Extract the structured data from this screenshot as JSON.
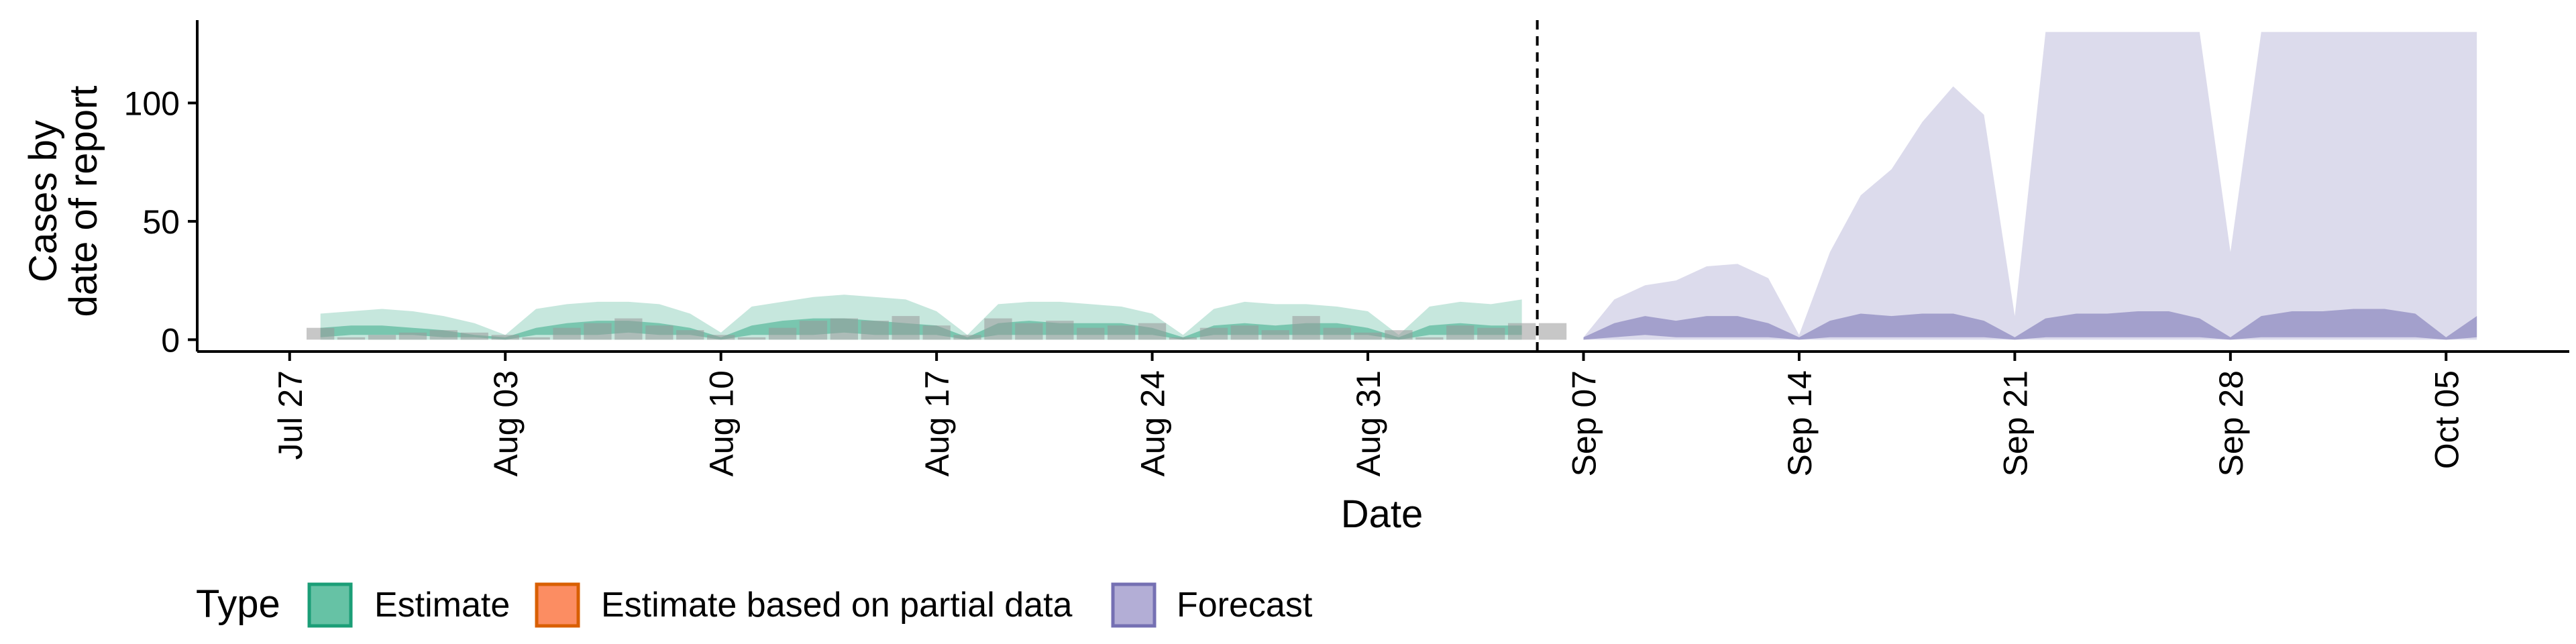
{
  "chart_data": {
    "type": "area",
    "xlabel": "Date",
    "ylabel_lines": [
      "Cases by",
      "date of report"
    ],
    "y_ticks": [
      0,
      50,
      100
    ],
    "ylim": [
      -5,
      135
    ],
    "x_tick_labels": [
      "Jul 27",
      "Aug 03",
      "Aug 10",
      "Aug 17",
      "Aug 24",
      "Aug 31",
      "Sep 07",
      "Sep 14",
      "Sep 21",
      "Sep 28",
      "Oct 05"
    ],
    "x_tick_days": [
      0,
      7,
      14,
      21,
      28,
      35,
      42,
      49,
      56,
      63,
      70
    ],
    "x_axis_start": "Jul 27",
    "xlim_days": [
      -3,
      74
    ],
    "forecast_start_day": 40.5,
    "legend": {
      "title": "Type",
      "position": "bottom-left",
      "items": [
        {
          "label": "Estimate",
          "fill": "#66c2a5",
          "stroke": "#1b9e77"
        },
        {
          "label": "Estimate based on partial data",
          "fill": "#fc8d62",
          "stroke": "#d95f02"
        },
        {
          "label": "Forecast",
          "fill": "#b3aed6",
          "stroke": "#7570b3"
        }
      ]
    },
    "colors": {
      "estimate": "#1b9e77",
      "forecast": "#7570b3",
      "observed": "#999999",
      "divider": "#000000"
    },
    "observed_cases": {
      "days": [
        1,
        2,
        3,
        4,
        5,
        6,
        7,
        8,
        9,
        10,
        11,
        12,
        13,
        14,
        15,
        16,
        17,
        18,
        19,
        20,
        21,
        22,
        23,
        24,
        25,
        26,
        27,
        28,
        29,
        30,
        31,
        32,
        33,
        34,
        35,
        36,
        37,
        38,
        39,
        40,
        41
      ],
      "values": [
        5,
        1,
        2,
        3,
        4,
        3,
        2,
        1,
        5,
        7,
        9,
        6,
        4,
        2,
        1,
        5,
        8,
        9,
        8,
        10,
        6,
        2,
        9,
        7,
        8,
        5,
        6,
        7,
        1,
        5,
        6,
        4,
        10,
        5,
        3,
        4,
        1,
        6,
        5,
        7,
        7
      ]
    },
    "estimate_series": {
      "days": [
        1,
        2,
        3,
        4,
        5,
        6,
        7,
        8,
        9,
        10,
        11,
        12,
        13,
        14,
        15,
        16,
        17,
        18,
        19,
        20,
        21,
        22,
        23,
        24,
        25,
        26,
        27,
        28,
        29,
        30,
        31,
        32,
        33,
        34,
        35,
        36,
        37,
        38,
        39,
        40
      ],
      "ci90_upper": [
        11,
        12,
        13,
        12,
        10,
        7,
        2,
        13,
        15,
        16,
        16,
        15,
        11,
        3,
        14,
        16,
        18,
        19,
        18,
        17,
        12,
        2,
        15,
        16,
        16,
        15,
        14,
        11,
        2,
        13,
        16,
        15,
        15,
        14,
        12,
        2,
        14,
        16,
        15,
        17
      ],
      "ci90_lower": [
        0,
        0,
        0,
        0,
        0,
        0,
        0,
        0,
        0,
        0,
        0,
        0,
        0,
        0,
        0,
        0,
        0,
        0,
        0,
        0,
        0,
        0,
        0,
        0,
        0,
        0,
        0,
        0,
        0,
        0,
        0,
        0,
        0,
        0,
        0,
        0,
        0,
        0,
        0,
        0
      ],
      "ci50_upper": [
        5,
        6,
        6,
        5,
        4,
        2,
        1,
        5,
        7,
        8,
        8,
        7,
        5,
        1,
        6,
        8,
        9,
        9,
        8,
        7,
        6,
        1,
        7,
        8,
        7,
        7,
        7,
        5,
        1,
        6,
        7,
        6,
        7,
        7,
        5,
        1,
        6,
        7,
        6,
        6
      ],
      "ci50_lower": [
        1,
        2,
        2,
        2,
        1,
        1,
        0,
        2,
        2,
        2,
        3,
        2,
        2,
        0,
        2,
        2,
        2,
        3,
        2,
        2,
        2,
        0,
        2,
        2,
        2,
        2,
        2,
        2,
        0,
        2,
        2,
        2,
        2,
        2,
        2,
        0,
        2,
        2,
        2,
        2
      ]
    },
    "forecast_series": {
      "days": [
        42,
        43,
        44,
        45,
        46,
        47,
        48,
        49,
        50,
        51,
        52,
        53,
        54,
        55,
        56,
        57,
        58,
        59,
        60,
        61,
        62,
        63,
        64,
        65,
        66,
        67,
        68,
        69,
        70,
        71
      ],
      "ci90_upper": [
        1,
        17,
        23,
        25,
        31,
        32,
        26,
        2,
        37,
        61,
        72,
        92,
        107,
        95,
        10,
        130,
        130,
        130,
        130,
        130,
        130,
        37,
        130,
        130,
        130,
        130,
        130,
        130,
        130,
        130
      ],
      "ci90_lower": [
        0,
        0,
        0,
        0,
        0,
        0,
        0,
        0,
        0,
        0,
        0,
        0,
        0,
        0,
        0,
        0,
        0,
        0,
        0,
        0,
        0,
        0,
        0,
        0,
        0,
        0,
        0,
        0,
        0,
        0
      ],
      "ci50_upper": [
        1,
        7,
        10,
        8,
        10,
        10,
        7,
        1,
        8,
        11,
        10,
        11,
        11,
        8,
        1,
        9,
        11,
        11,
        12,
        12,
        9,
        1,
        10,
        12,
        12,
        13,
        13,
        11,
        1,
        10
      ],
      "ci50_lower": [
        0,
        1,
        2,
        1,
        1,
        1,
        1,
        0,
        1,
        1,
        1,
        1,
        1,
        1,
        0,
        1,
        1,
        1,
        1,
        1,
        1,
        0,
        1,
        1,
        1,
        1,
        1,
        1,
        0,
        1
      ]
    }
  }
}
